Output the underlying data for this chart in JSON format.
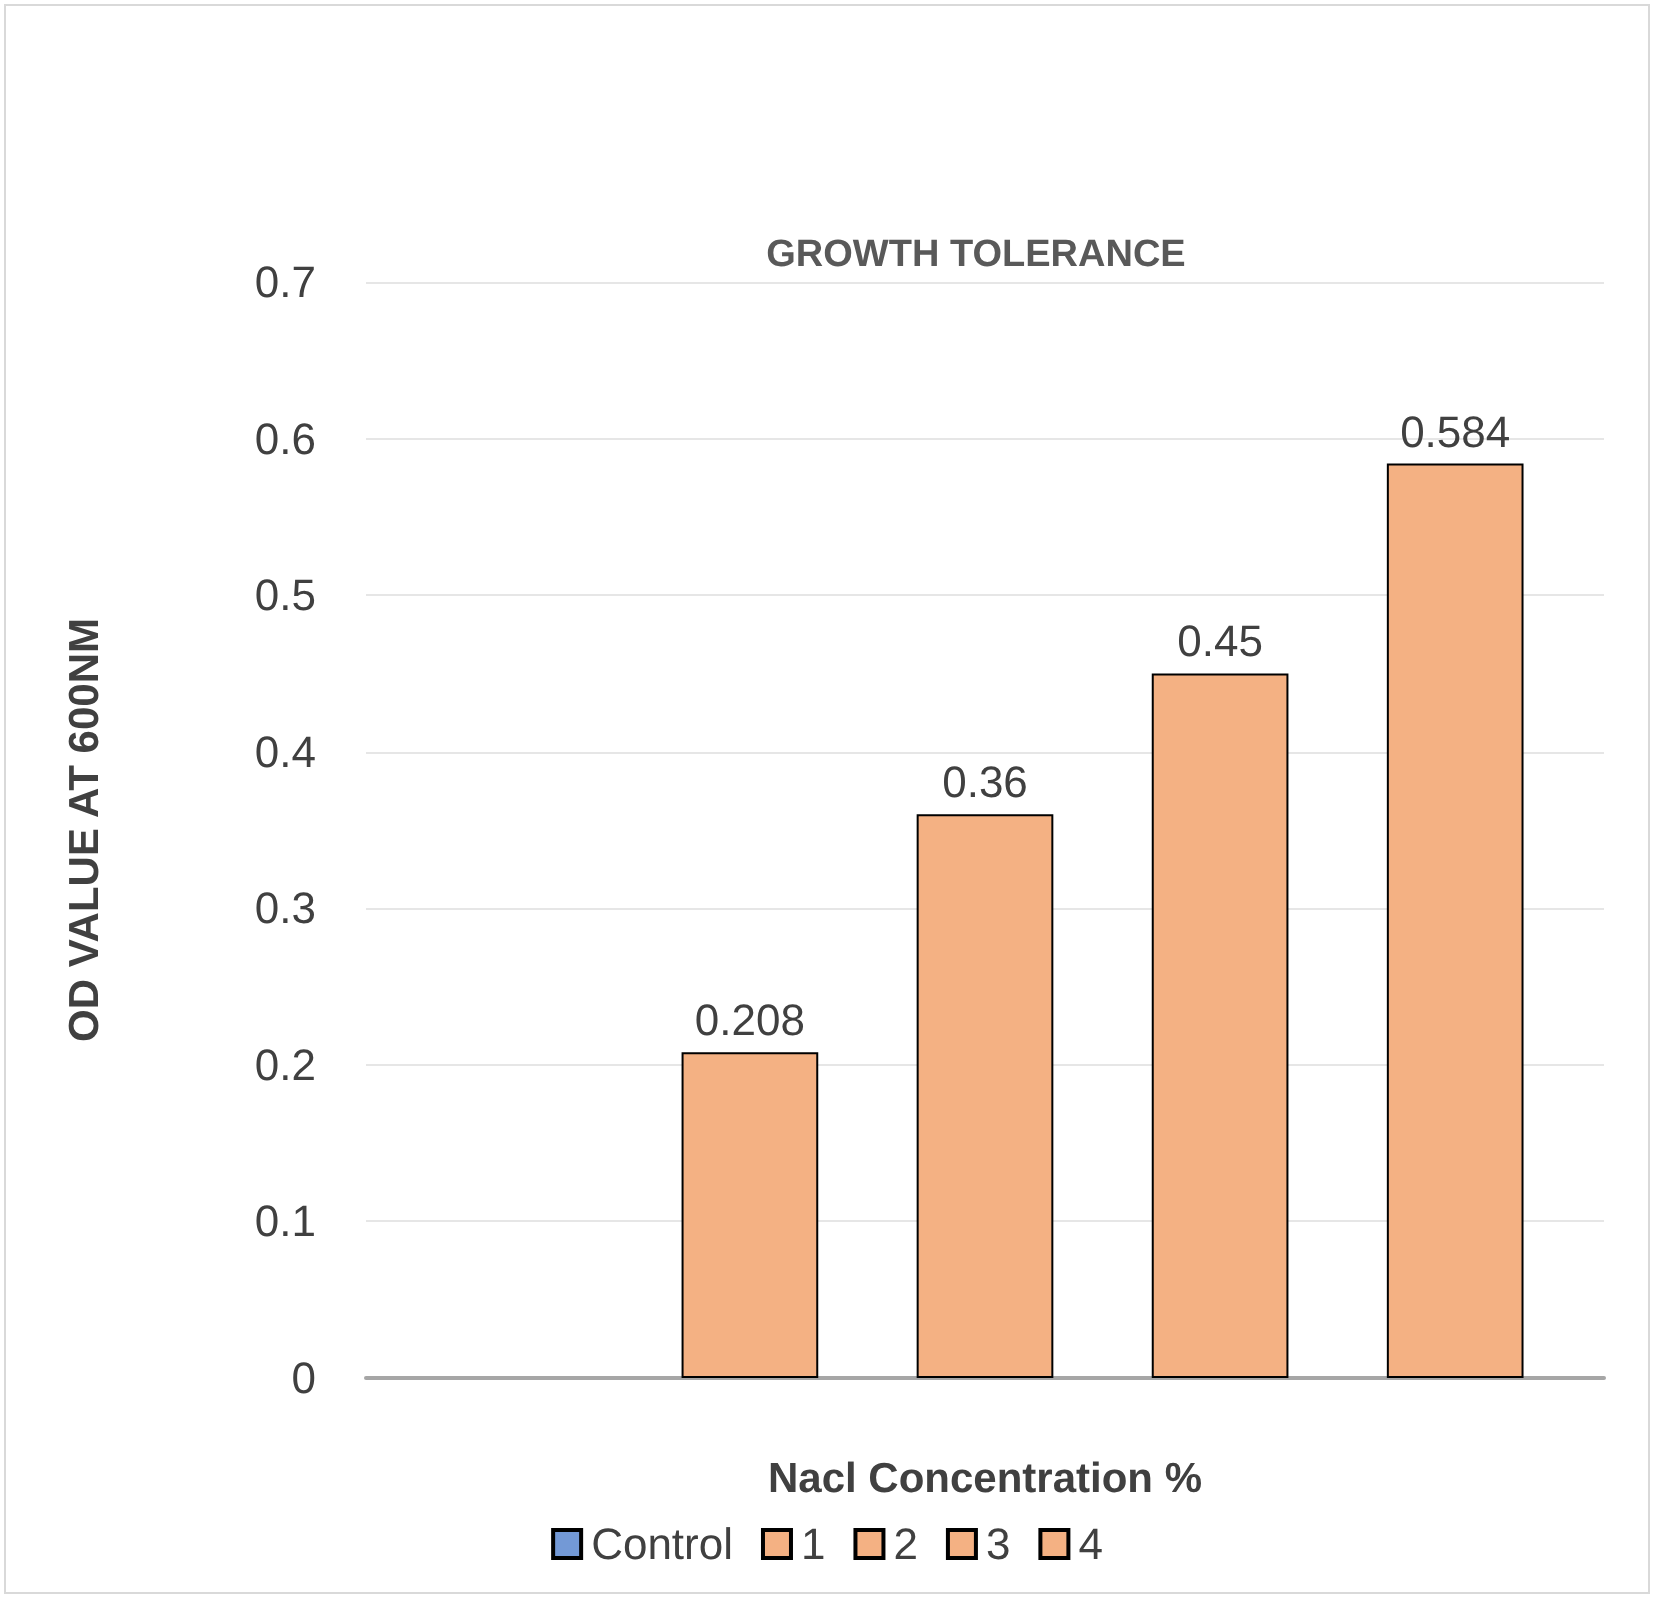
{
  "chart_data": {
    "type": "bar",
    "title": "GROWTH TOLERANCE",
    "xlabel": "Nacl Concentration %",
    "ylabel": "OD VALUE AT 600NM",
    "categories": [
      null
    ],
    "series": [
      {
        "name": "Control",
        "color": "#7399d6",
        "values": [
          null
        ]
      },
      {
        "name": "1",
        "color": "#f4b183",
        "values": [
          0.208
        ]
      },
      {
        "name": "2",
        "color": "#f4b183",
        "values": [
          0.36
        ]
      },
      {
        "name": "3",
        "color": "#f4b183",
        "values": [
          0.45
        ]
      },
      {
        "name": "4",
        "color": "#f4b183",
        "values": [
          0.584
        ]
      }
    ],
    "ylim": [
      0,
      0.7
    ],
    "yticks": [
      0,
      0.1,
      0.2,
      0.3,
      0.4,
      0.5,
      0.6,
      0.7
    ],
    "grid": "y",
    "legend": "bottom",
    "data_labels": true
  }
}
